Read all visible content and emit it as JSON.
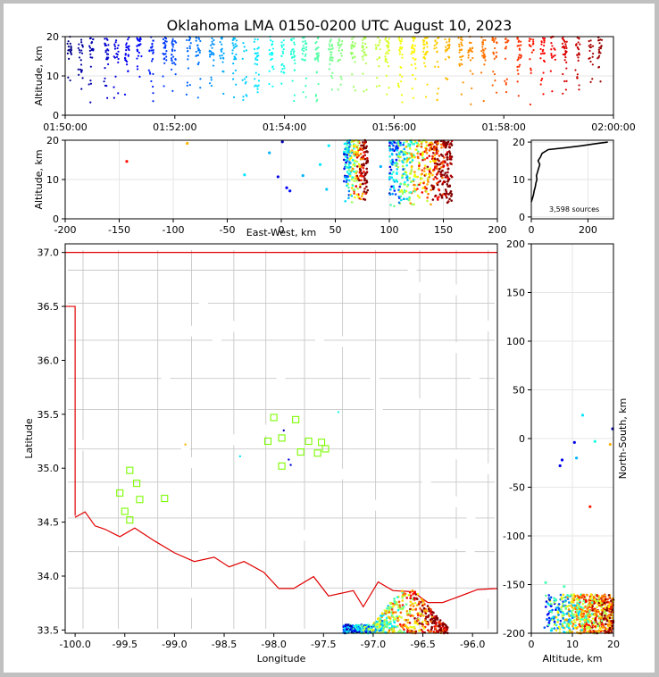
{
  "title": "Oklahoma LMA 0150-0200 UTC August 10, 2023",
  "source_count_label": "3,598 sources",
  "chart_data": [
    {
      "panel": "time-height",
      "type": "scatter",
      "xlabel": "",
      "ylabel": "Altitude, km",
      "xticks": [
        "01:50:00",
        "01:52:00",
        "01:54:00",
        "01:56:00",
        "01:58:00",
        "02:00:00"
      ],
      "xlim": [
        0,
        600
      ],
      "yticks": [
        0,
        10,
        20
      ],
      "ylim": [
        0,
        20
      ],
      "color_by": "time",
      "altitude_range_km": [
        2,
        20
      ]
    },
    {
      "panel": "east-west-height",
      "type": "scatter",
      "xlabel": "East-West, km",
      "ylabel": "Altitude, km",
      "xticks": [
        -200,
        -150,
        -100,
        -50,
        0,
        50,
        100,
        150,
        200
      ],
      "xlim": [
        -200,
        200
      ],
      "yticks": [
        0,
        10,
        20
      ],
      "ylim": [
        0,
        20
      ],
      "clusters": [
        {
          "x": [
            58,
            80
          ],
          "y": [
            4,
            20
          ],
          "count": 260
        },
        {
          "x": [
            100,
            158
          ],
          "y": [
            3,
            20
          ],
          "count": 520
        }
      ],
      "outliers": [
        {
          "x": -143,
          "y": 14.6,
          "t": 0.86
        },
        {
          "x": -87,
          "y": 19.2,
          "t": 0.7
        },
        {
          "x": -34,
          "y": 11.2,
          "t": 0.35
        },
        {
          "x": -11,
          "y": 16.8,
          "t": 0.3
        },
        {
          "x": 1,
          "y": 19.6,
          "t": 0.05
        },
        {
          "x": -3,
          "y": 10.7,
          "t": 0.1
        },
        {
          "x": 5,
          "y": 7.9,
          "t": 0.12
        },
        {
          "x": 8,
          "y": 7.1,
          "t": 0.14
        },
        {
          "x": 20,
          "y": 11.0,
          "t": 0.3
        },
        {
          "x": 36,
          "y": 13.8,
          "t": 0.35
        },
        {
          "x": 42,
          "y": 7.5,
          "t": 0.32
        },
        {
          "x": 44,
          "y": 18.6,
          "t": 0.36
        },
        {
          "x": 92,
          "y": 13.3,
          "t": 0.3
        }
      ]
    },
    {
      "panel": "altitude-histogram",
      "type": "line",
      "xlabel": "",
      "ylabel": "",
      "xticks": [
        0,
        200
      ],
      "xlim": [
        0,
        290
      ],
      "yticks": [
        0,
        10,
        20
      ],
      "ylim": [
        -0.5,
        20.5
      ],
      "profile": [
        {
          "count": 0,
          "alt": 4.0
        },
        {
          "count": 4,
          "alt": 5.0
        },
        {
          "count": 8,
          "alt": 6.0
        },
        {
          "count": 10,
          "alt": 7.0
        },
        {
          "count": 14,
          "alt": 8.0
        },
        {
          "count": 16,
          "alt": 9.0
        },
        {
          "count": 20,
          "alt": 10.0
        },
        {
          "count": 18,
          "alt": 11.0
        },
        {
          "count": 22,
          "alt": 12.0
        },
        {
          "count": 26,
          "alt": 13.0
        },
        {
          "count": 30,
          "alt": 14.0
        },
        {
          "count": 24,
          "alt": 15.0
        },
        {
          "count": 32,
          "alt": 16.0
        },
        {
          "count": 38,
          "alt": 17.0
        },
        {
          "count": 60,
          "alt": 18.0
        },
        {
          "count": 120,
          "alt": 18.5
        },
        {
          "count": 175,
          "alt": 19.0
        },
        {
          "count": 220,
          "alt": 19.5
        },
        {
          "count": 270,
          "alt": 20.0
        }
      ]
    },
    {
      "panel": "plan-view",
      "type": "scatter",
      "xlabel": "Longitude",
      "ylabel": "Latitude",
      "xticks": [
        -100.0,
        -99.5,
        -99.0,
        -98.5,
        -98.0,
        -97.5,
        -97.0,
        -96.5,
        -96.0
      ],
      "xlim": [
        -100.1,
        -95.75
      ],
      "yticks": [
        33.5,
        34.0,
        34.5,
        35.0,
        35.5,
        36.0,
        36.5,
        37.0
      ],
      "ylim": [
        33.47,
        37.08
      ],
      "stations": [
        {
          "lon": -98.0,
          "lat": 35.47
        },
        {
          "lon": -97.78,
          "lat": 35.45
        },
        {
          "lon": -98.06,
          "lat": 35.25
        },
        {
          "lon": -97.92,
          "lat": 35.28
        },
        {
          "lon": -97.65,
          "lat": 35.25
        },
        {
          "lon": -97.52,
          "lat": 35.24
        },
        {
          "lon": -97.73,
          "lat": 35.15
        },
        {
          "lon": -97.56,
          "lat": 35.14
        },
        {
          "lon": -97.48,
          "lat": 35.18
        },
        {
          "lon": -97.92,
          "lat": 35.02
        },
        {
          "lon": -99.45,
          "lat": 34.98
        },
        {
          "lon": -99.38,
          "lat": 34.86
        },
        {
          "lon": -99.55,
          "lat": 34.77
        },
        {
          "lon": -99.35,
          "lat": 34.71
        },
        {
          "lon": -99.1,
          "lat": 34.72
        },
        {
          "lon": -99.5,
          "lat": 34.6
        },
        {
          "lon": -99.45,
          "lat": 34.52
        }
      ],
      "source_region": {
        "lon": [
          -97.3,
          -96.25
        ],
        "lat": [
          33.47,
          33.88
        ]
      }
    },
    {
      "panel": "north-south-height",
      "type": "scatter",
      "xlabel": "Altitude, km",
      "ylabel": "North-South, km",
      "xticks": [
        0,
        10,
        20
      ],
      "xlim": [
        0,
        20
      ],
      "yticks": [
        -200,
        -150,
        -100,
        -50,
        0,
        50,
        100,
        150,
        200
      ],
      "ylim": [
        -200,
        200
      ],
      "clusters": [
        {
          "x": [
            3,
            20
          ],
          "y": [
            -200,
            -160
          ],
          "count": 700
        }
      ],
      "outliers": [
        {
          "x": 19.8,
          "y": 10,
          "t": 0.05
        },
        {
          "x": 12.5,
          "y": 24,
          "t": 0.35
        },
        {
          "x": 15.5,
          "y": -3,
          "t": 0.4
        },
        {
          "x": 10.5,
          "y": -4,
          "t": 0.1
        },
        {
          "x": 7.5,
          "y": -22,
          "t": 0.1
        },
        {
          "x": 7.0,
          "y": -28,
          "t": 0.1
        },
        {
          "x": 11.0,
          "y": -20,
          "t": 0.3
        },
        {
          "x": 19.2,
          "y": -6,
          "t": 0.7
        },
        {
          "x": 14.3,
          "y": -70,
          "t": 0.85
        },
        {
          "x": 3.5,
          "y": -148,
          "t": 0.45
        },
        {
          "x": 8.0,
          "y": -152,
          "t": 0.45
        }
      ]
    }
  ]
}
